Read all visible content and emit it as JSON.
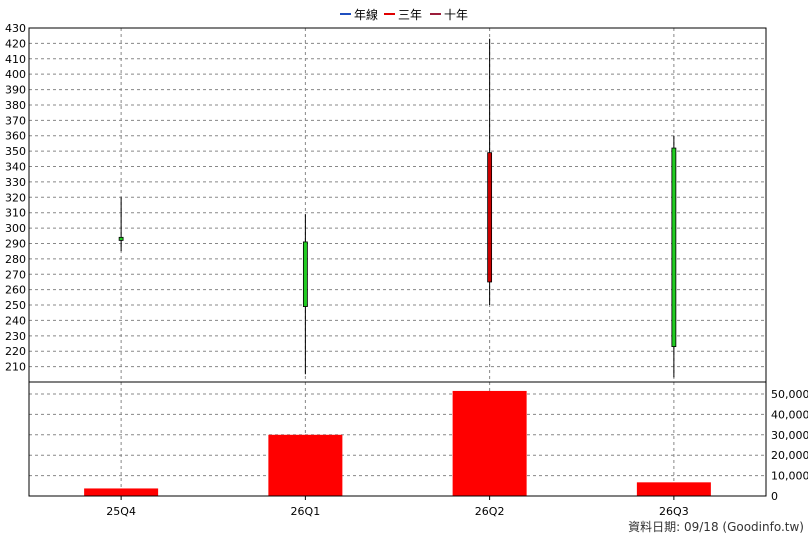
{
  "legend": {
    "items": [
      {
        "label": "年線",
        "color": "#1f4fbf"
      },
      {
        "label": "三年",
        "color": "#e00000"
      },
      {
        "label": "十年",
        "color": "#9b1c3a"
      }
    ]
  },
  "footer": {
    "source": "資料日期: 09/18  (Goodinfo.tw)"
  },
  "colors": {
    "up": "#cc0000",
    "down": "#22cc22",
    "volume": "#ff0000",
    "grid": "#888888"
  },
  "chart_data": {
    "type": "candlestick",
    "categories": [
      "25Q4",
      "26Q1",
      "26Q2",
      "26Q3"
    ],
    "price": {
      "ylim": [
        200,
        430
      ],
      "yticks": [
        210,
        220,
        230,
        240,
        250,
        260,
        270,
        280,
        290,
        300,
        310,
        320,
        330,
        340,
        350,
        360,
        370,
        380,
        390,
        400,
        410,
        420,
        430
      ],
      "ohlc": [
        {
          "open": 294,
          "high": 320,
          "low": 285,
          "close": 292
        },
        {
          "open": 291,
          "high": 309,
          "low": 205,
          "close": 249
        },
        {
          "open": 265,
          "high": 423,
          "low": 250,
          "close": 349
        },
        {
          "open": 352,
          "high": 360,
          "low": 203,
          "close": 223
        }
      ]
    },
    "volume": {
      "ylim": [
        0,
        50000
      ],
      "yticks": [
        0,
        10000,
        20000,
        30000,
        40000,
        50000
      ],
      "ytick_labels": [
        "0",
        "10,000",
        "20,000",
        "30,000",
        "40,000",
        "50,000"
      ],
      "values": [
        3700,
        30000,
        51500,
        6700
      ]
    },
    "grid": true,
    "legend_position": "top-center"
  }
}
